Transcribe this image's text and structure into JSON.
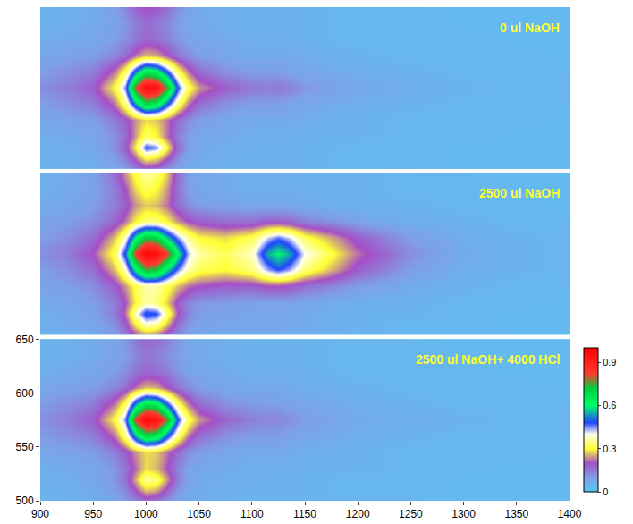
{
  "chart_data": [
    {
      "type": "heatmap",
      "title": "0 ul NaOH",
      "tick_labels": false,
      "xlim": [
        900,
        1400
      ],
      "ylim": [
        500,
        650
      ],
      "x": [
        900,
        925,
        950,
        970,
        980,
        990,
        1000,
        1010,
        1020,
        1030,
        1040,
        1050,
        1075,
        1100,
        1115,
        1125,
        1135,
        1150,
        1200,
        1250,
        1300,
        1350,
        1400
      ],
      "y": [
        500,
        510,
        520,
        530,
        545,
        560,
        575,
        590,
        605,
        620,
        635,
        650
      ],
      "z": [
        [
          0.05,
          0.05,
          0.06,
          0.08,
          0.1,
          0.14,
          0.17,
          0.16,
          0.12,
          0.09,
          0.07,
          0.06,
          0.05,
          0.05,
          0.05,
          0.05,
          0.05,
          0.05,
          0.04,
          0.04,
          0.03,
          0.03,
          0.03
        ],
        [
          0.05,
          0.06,
          0.07,
          0.1,
          0.14,
          0.22,
          0.3,
          0.28,
          0.2,
          0.12,
          0.08,
          0.07,
          0.06,
          0.05,
          0.05,
          0.05,
          0.05,
          0.05,
          0.04,
          0.04,
          0.03,
          0.03,
          0.03
        ],
        [
          0.06,
          0.06,
          0.08,
          0.12,
          0.18,
          0.3,
          0.48,
          0.45,
          0.3,
          0.16,
          0.1,
          0.08,
          0.06,
          0.06,
          0.05,
          0.05,
          0.05,
          0.05,
          0.04,
          0.04,
          0.03,
          0.03,
          0.03
        ],
        [
          0.06,
          0.07,
          0.08,
          0.12,
          0.16,
          0.25,
          0.33,
          0.3,
          0.22,
          0.14,
          0.1,
          0.08,
          0.07,
          0.06,
          0.06,
          0.06,
          0.06,
          0.05,
          0.05,
          0.04,
          0.04,
          0.03,
          0.03
        ],
        [
          0.08,
          0.09,
          0.1,
          0.14,
          0.18,
          0.24,
          0.28,
          0.27,
          0.22,
          0.16,
          0.12,
          0.1,
          0.08,
          0.07,
          0.07,
          0.07,
          0.07,
          0.06,
          0.05,
          0.04,
          0.04,
          0.04,
          0.03
        ],
        [
          0.1,
          0.12,
          0.14,
          0.22,
          0.34,
          0.55,
          0.7,
          0.66,
          0.5,
          0.34,
          0.22,
          0.16,
          0.12,
          0.1,
          0.1,
          0.1,
          0.09,
          0.08,
          0.06,
          0.05,
          0.04,
          0.04,
          0.04
        ],
        [
          0.12,
          0.14,
          0.18,
          0.3,
          0.45,
          0.82,
          0.97,
          0.95,
          0.75,
          0.48,
          0.32,
          0.24,
          0.18,
          0.15,
          0.14,
          0.15,
          0.14,
          0.11,
          0.08,
          0.06,
          0.05,
          0.04,
          0.04
        ],
        [
          0.1,
          0.12,
          0.14,
          0.22,
          0.32,
          0.52,
          0.66,
          0.62,
          0.48,
          0.32,
          0.22,
          0.16,
          0.12,
          0.1,
          0.1,
          0.1,
          0.09,
          0.08,
          0.06,
          0.05,
          0.04,
          0.04,
          0.04
        ],
        [
          0.08,
          0.09,
          0.1,
          0.13,
          0.16,
          0.22,
          0.26,
          0.25,
          0.2,
          0.15,
          0.12,
          0.1,
          0.08,
          0.07,
          0.07,
          0.07,
          0.07,
          0.06,
          0.05,
          0.04,
          0.04,
          0.04,
          0.03
        ],
        [
          0.06,
          0.07,
          0.08,
          0.1,
          0.12,
          0.15,
          0.17,
          0.16,
          0.14,
          0.11,
          0.09,
          0.08,
          0.07,
          0.06,
          0.06,
          0.06,
          0.06,
          0.05,
          0.04,
          0.04,
          0.04,
          0.03,
          0.03
        ],
        [
          0.05,
          0.06,
          0.07,
          0.09,
          0.11,
          0.14,
          0.16,
          0.15,
          0.13,
          0.1,
          0.08,
          0.07,
          0.06,
          0.05,
          0.05,
          0.05,
          0.05,
          0.05,
          0.04,
          0.04,
          0.03,
          0.03,
          0.03
        ],
        [
          0.05,
          0.06,
          0.07,
          0.1,
          0.13,
          0.18,
          0.2,
          0.19,
          0.16,
          0.12,
          0.09,
          0.07,
          0.06,
          0.05,
          0.05,
          0.05,
          0.05,
          0.05,
          0.04,
          0.04,
          0.03,
          0.03,
          0.03
        ]
      ]
    },
    {
      "type": "heatmap",
      "title": "2500 ul NaOH",
      "tick_labels": false,
      "xlim": [
        900,
        1400
      ],
      "ylim": [
        500,
        650
      ],
      "x": [
        900,
        925,
        950,
        970,
        980,
        990,
        1000,
        1010,
        1020,
        1030,
        1040,
        1050,
        1075,
        1100,
        1115,
        1125,
        1135,
        1150,
        1200,
        1250,
        1300,
        1350,
        1400
      ],
      "y": [
        500,
        510,
        520,
        530,
        545,
        560,
        575,
        590,
        605,
        620,
        635,
        650
      ],
      "z": [
        [
          0.05,
          0.06,
          0.07,
          0.1,
          0.14,
          0.2,
          0.24,
          0.22,
          0.17,
          0.12,
          0.09,
          0.08,
          0.07,
          0.07,
          0.07,
          0.07,
          0.07,
          0.06,
          0.05,
          0.04,
          0.04,
          0.03,
          0.03
        ],
        [
          0.06,
          0.07,
          0.08,
          0.12,
          0.18,
          0.3,
          0.38,
          0.36,
          0.26,
          0.16,
          0.11,
          0.09,
          0.08,
          0.08,
          0.08,
          0.08,
          0.07,
          0.07,
          0.05,
          0.04,
          0.04,
          0.03,
          0.03
        ],
        [
          0.06,
          0.07,
          0.09,
          0.14,
          0.22,
          0.38,
          0.5,
          0.48,
          0.34,
          0.2,
          0.13,
          0.1,
          0.09,
          0.08,
          0.08,
          0.08,
          0.08,
          0.07,
          0.05,
          0.05,
          0.04,
          0.03,
          0.03
        ],
        [
          0.07,
          0.08,
          0.1,
          0.14,
          0.2,
          0.3,
          0.36,
          0.34,
          0.27,
          0.18,
          0.13,
          0.11,
          0.1,
          0.09,
          0.09,
          0.09,
          0.09,
          0.08,
          0.06,
          0.05,
          0.04,
          0.04,
          0.03
        ],
        [
          0.09,
          0.1,
          0.12,
          0.18,
          0.24,
          0.32,
          0.36,
          0.36,
          0.32,
          0.26,
          0.22,
          0.2,
          0.18,
          0.18,
          0.2,
          0.2,
          0.19,
          0.16,
          0.1,
          0.07,
          0.05,
          0.04,
          0.04
        ],
        [
          0.1,
          0.12,
          0.16,
          0.26,
          0.38,
          0.6,
          0.75,
          0.72,
          0.58,
          0.45,
          0.36,
          0.32,
          0.3,
          0.34,
          0.44,
          0.48,
          0.44,
          0.34,
          0.18,
          0.1,
          0.06,
          0.05,
          0.04
        ],
        [
          0.12,
          0.14,
          0.2,
          0.32,
          0.5,
          0.85,
          0.98,
          0.96,
          0.82,
          0.6,
          0.42,
          0.36,
          0.32,
          0.38,
          0.55,
          0.6,
          0.55,
          0.4,
          0.22,
          0.12,
          0.07,
          0.05,
          0.04
        ],
        [
          0.1,
          0.12,
          0.16,
          0.26,
          0.38,
          0.6,
          0.72,
          0.7,
          0.56,
          0.44,
          0.35,
          0.3,
          0.28,
          0.32,
          0.42,
          0.46,
          0.42,
          0.32,
          0.18,
          0.1,
          0.06,
          0.05,
          0.04
        ],
        [
          0.09,
          0.1,
          0.12,
          0.17,
          0.22,
          0.3,
          0.34,
          0.34,
          0.3,
          0.24,
          0.2,
          0.18,
          0.16,
          0.16,
          0.18,
          0.18,
          0.17,
          0.14,
          0.09,
          0.06,
          0.05,
          0.04,
          0.04
        ],
        [
          0.07,
          0.08,
          0.1,
          0.14,
          0.18,
          0.24,
          0.27,
          0.26,
          0.22,
          0.16,
          0.12,
          0.1,
          0.09,
          0.08,
          0.08,
          0.08,
          0.08,
          0.07,
          0.05,
          0.05,
          0.04,
          0.04,
          0.03
        ],
        [
          0.06,
          0.07,
          0.09,
          0.14,
          0.2,
          0.28,
          0.32,
          0.3,
          0.24,
          0.15,
          0.1,
          0.08,
          0.07,
          0.06,
          0.06,
          0.06,
          0.06,
          0.05,
          0.05,
          0.04,
          0.04,
          0.03,
          0.03
        ],
        [
          0.06,
          0.07,
          0.09,
          0.16,
          0.24,
          0.32,
          0.36,
          0.34,
          0.27,
          0.16,
          0.1,
          0.08,
          0.07,
          0.06,
          0.06,
          0.06,
          0.06,
          0.05,
          0.05,
          0.04,
          0.04,
          0.03,
          0.03
        ]
      ]
    },
    {
      "type": "heatmap",
      "title": "2500 ul NaOH+ 4000 HCl",
      "xlim": [
        900,
        1400
      ],
      "ylim": [
        500,
        650
      ],
      "xticks": [
        900,
        950,
        1000,
        1050,
        1100,
        1150,
        1200,
        1250,
        1300,
        1350,
        1400
      ],
      "yticks": [
        500,
        550,
        600,
        650
      ],
      "colorbar": {
        "range": [
          0,
          1
        ],
        "ticks": [
          0,
          0.3,
          0.6,
          0.9
        ]
      },
      "x": [
        900,
        925,
        950,
        970,
        980,
        990,
        1000,
        1010,
        1020,
        1030,
        1040,
        1050,
        1075,
        1100,
        1115,
        1125,
        1135,
        1150,
        1200,
        1250,
        1300,
        1350,
        1400
      ],
      "y": [
        500,
        510,
        520,
        530,
        545,
        560,
        575,
        590,
        605,
        620,
        635,
        650
      ],
      "z": [
        [
          0.05,
          0.05,
          0.06,
          0.08,
          0.1,
          0.13,
          0.16,
          0.15,
          0.11,
          0.08,
          0.07,
          0.06,
          0.05,
          0.05,
          0.05,
          0.05,
          0.05,
          0.05,
          0.04,
          0.04,
          0.03,
          0.03,
          0.03
        ],
        [
          0.05,
          0.06,
          0.07,
          0.1,
          0.13,
          0.2,
          0.27,
          0.25,
          0.18,
          0.11,
          0.08,
          0.07,
          0.06,
          0.05,
          0.05,
          0.05,
          0.05,
          0.05,
          0.04,
          0.04,
          0.03,
          0.03,
          0.03
        ],
        [
          0.06,
          0.06,
          0.08,
          0.11,
          0.16,
          0.26,
          0.36,
          0.34,
          0.24,
          0.14,
          0.09,
          0.07,
          0.06,
          0.06,
          0.05,
          0.05,
          0.05,
          0.05,
          0.04,
          0.04,
          0.03,
          0.03,
          0.03
        ],
        [
          0.06,
          0.07,
          0.08,
          0.11,
          0.15,
          0.22,
          0.28,
          0.26,
          0.2,
          0.13,
          0.09,
          0.08,
          0.07,
          0.06,
          0.06,
          0.06,
          0.06,
          0.05,
          0.05,
          0.04,
          0.04,
          0.03,
          0.03
        ],
        [
          0.08,
          0.09,
          0.1,
          0.14,
          0.18,
          0.24,
          0.28,
          0.27,
          0.22,
          0.16,
          0.12,
          0.1,
          0.08,
          0.07,
          0.07,
          0.07,
          0.07,
          0.06,
          0.05,
          0.04,
          0.04,
          0.04,
          0.03
        ],
        [
          0.1,
          0.12,
          0.14,
          0.22,
          0.34,
          0.56,
          0.7,
          0.67,
          0.5,
          0.34,
          0.22,
          0.16,
          0.12,
          0.1,
          0.1,
          0.1,
          0.09,
          0.08,
          0.06,
          0.05,
          0.04,
          0.04,
          0.04
        ],
        [
          0.12,
          0.14,
          0.18,
          0.3,
          0.45,
          0.84,
          0.97,
          0.95,
          0.76,
          0.48,
          0.32,
          0.24,
          0.17,
          0.14,
          0.13,
          0.13,
          0.12,
          0.1,
          0.07,
          0.06,
          0.05,
          0.04,
          0.04
        ],
        [
          0.1,
          0.12,
          0.14,
          0.22,
          0.32,
          0.53,
          0.66,
          0.63,
          0.48,
          0.32,
          0.22,
          0.16,
          0.12,
          0.1,
          0.1,
          0.1,
          0.09,
          0.08,
          0.06,
          0.05,
          0.04,
          0.04,
          0.04
        ],
        [
          0.08,
          0.09,
          0.1,
          0.13,
          0.16,
          0.22,
          0.26,
          0.25,
          0.2,
          0.15,
          0.12,
          0.1,
          0.08,
          0.07,
          0.07,
          0.07,
          0.07,
          0.06,
          0.05,
          0.04,
          0.04,
          0.04,
          0.03
        ],
        [
          0.06,
          0.07,
          0.08,
          0.1,
          0.12,
          0.15,
          0.17,
          0.16,
          0.14,
          0.11,
          0.09,
          0.08,
          0.07,
          0.06,
          0.06,
          0.06,
          0.06,
          0.05,
          0.04,
          0.04,
          0.04,
          0.03,
          0.03
        ],
        [
          0.05,
          0.06,
          0.07,
          0.09,
          0.1,
          0.13,
          0.15,
          0.14,
          0.12,
          0.1,
          0.08,
          0.07,
          0.06,
          0.05,
          0.05,
          0.05,
          0.05,
          0.05,
          0.04,
          0.04,
          0.03,
          0.03,
          0.03
        ],
        [
          0.05,
          0.06,
          0.07,
          0.09,
          0.11,
          0.15,
          0.17,
          0.16,
          0.14,
          0.11,
          0.08,
          0.07,
          0.06,
          0.05,
          0.05,
          0.05,
          0.05,
          0.05,
          0.04,
          0.04,
          0.03,
          0.03,
          0.03
        ]
      ]
    }
  ]
}
